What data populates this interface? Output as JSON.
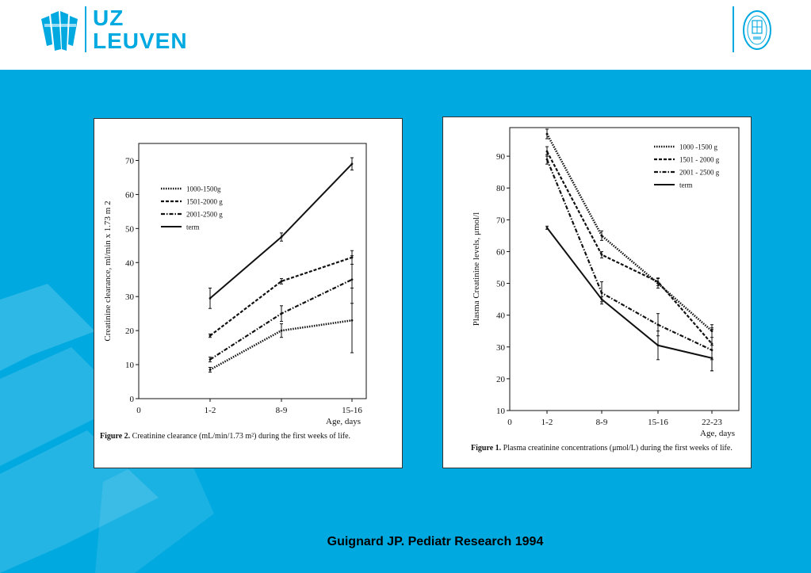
{
  "header": {
    "logo_line1": "UZ",
    "logo_line2": "LEUVEN",
    "logo_icon": "uz-leuven-logo-icon",
    "seal_icon": "ku-leuven-seal-icon",
    "brand_color": "#00a9e0"
  },
  "figures": {
    "fig2": {
      "caption_label": "Figure 2.",
      "caption_text": "Creatinine clearance (mL/min/1.73 m²) during the first weeks of life."
    },
    "fig1": {
      "caption_label": "Figure 1.",
      "caption_text": "Plasma creatinine concentrations (μmol/L) during the first weeks of life."
    }
  },
  "citation": "Guignard JP. Pediatr Research 1994",
  "chart_data": [
    {
      "id": "fig2",
      "type": "line",
      "title": "",
      "xlabel": "Age, days",
      "ylabel": "Creatinine clearance, ml/min x 1.73 m 2",
      "x_zero_label": "0",
      "categories": [
        "1-2",
        "8-9",
        "15-16"
      ],
      "ylim": [
        0,
        75
      ],
      "yticks": [
        0,
        10,
        20,
        30,
        40,
        50,
        60,
        70
      ],
      "legend_position": "top-left",
      "series": [
        {
          "name": "1000-1500g",
          "style": "dotted",
          "values": [
            8.5,
            20,
            23
          ],
          "errors": [
            0.7,
            2,
            9.5
          ]
        },
        {
          "name": "1501-2000 g",
          "style": "dashed",
          "values": [
            18.5,
            34.5,
            41.5
          ],
          "errors": [
            0.5,
            0.8,
            2
          ]
        },
        {
          "name": "2001-2500 g",
          "style": "dashdot",
          "values": [
            11.5,
            25,
            35
          ],
          "errors": [
            0.7,
            2.3,
            7
          ]
        },
        {
          "name": "term",
          "style": "solid",
          "values": [
            29.5,
            47.5,
            69
          ],
          "errors": [
            3,
            1.2,
            1.8
          ]
        }
      ]
    },
    {
      "id": "fig1",
      "type": "line",
      "title": "",
      "xlabel": "Age, days",
      "ylabel": "Plasma Creatinine levels, μmol/l",
      "x_zero_label": "0",
      "categories": [
        "1-2",
        "8-9",
        "15-16",
        "22-23"
      ],
      "ylim": [
        10,
        99
      ],
      "yticks": [
        10,
        20,
        30,
        40,
        50,
        60,
        70,
        80,
        90
      ],
      "legend_position": "top-right",
      "series": [
        {
          "name": "1000 -1500 g",
          "style": "dotted",
          "values": [
            97,
            65,
            50,
            35
          ],
          "errors": [
            1.5,
            1.5,
            1.5,
            2
          ]
        },
        {
          "name": "1501 - 2000 g",
          "style": "dashed",
          "values": [
            91.5,
            59,
            50.5,
            31
          ],
          "errors": [
            1.5,
            1,
            1.2,
            5
          ]
        },
        {
          "name": "2001 - 2500 g",
          "style": "dashdot",
          "values": [
            89,
            47,
            37,
            29
          ],
          "errors": [
            1.5,
            3.5,
            3.5,
            6.5
          ]
        },
        {
          "name": "term",
          "style": "solid",
          "values": [
            67.5,
            45,
            30.5,
            26.5
          ],
          "errors": [
            0.5,
            0.8,
            4.5,
            4
          ]
        }
      ]
    }
  ]
}
